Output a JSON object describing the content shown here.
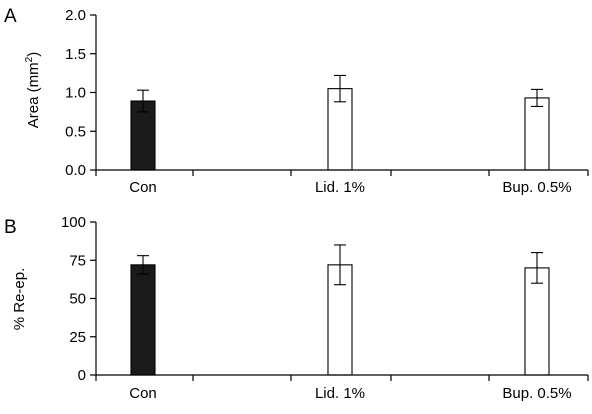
{
  "colors": {
    "filled": "#1a1a1a",
    "open": "#ffffff",
    "stroke": "#000000"
  },
  "chart_data": [
    {
      "type": "bar",
      "panel": "A",
      "ylabel": "Area (mm²)",
      "ylabel_base": "Area (mm",
      "ylabel_sup": "2",
      "ylabel_end": ")",
      "ylim": [
        0,
        2.0
      ],
      "yticks": [
        "0.0",
        "0.5",
        "1.0",
        "1.5",
        "2.0"
      ],
      "ytick_values": [
        0,
        0.5,
        1.0,
        1.5,
        2.0
      ],
      "categories": [
        "Con",
        "Lid. 1%",
        "Bup. 0.5%"
      ],
      "values": [
        0.89,
        1.05,
        0.93
      ],
      "errors": [
        0.14,
        0.17,
        0.11
      ],
      "fills": [
        "filled",
        "open",
        "open"
      ],
      "grid": false
    },
    {
      "type": "bar",
      "panel": "B",
      "ylabel": "% Re-ep.",
      "ylim": [
        0,
        100
      ],
      "yticks": [
        "0",
        "25",
        "50",
        "75",
        "100"
      ],
      "ytick_values": [
        0,
        25,
        50,
        75,
        100
      ],
      "categories": [
        "Con",
        "Lid. 1%",
        "Bup. 0.5%"
      ],
      "values": [
        72,
        72,
        70
      ],
      "errors": [
        6,
        13,
        10
      ],
      "fills": [
        "filled",
        "open",
        "open"
      ],
      "grid": false
    }
  ]
}
